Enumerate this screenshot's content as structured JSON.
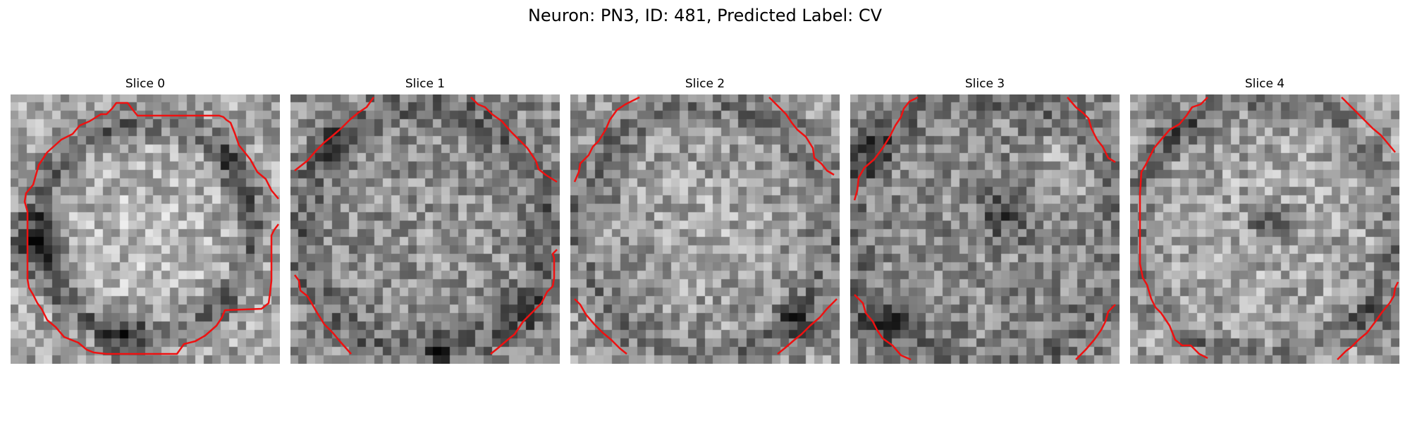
{
  "figure": {
    "title": "Neuron: PN3, ID: 481, Predicted Label: CV"
  },
  "colors": {
    "contour": "#ee1111",
    "colormap": "grayscale"
  },
  "slices": [
    {
      "title": "Slice 0"
    },
    {
      "title": "Slice 1"
    },
    {
      "title": "Slice 2"
    },
    {
      "title": "Slice 3"
    },
    {
      "title": "Slice 4"
    }
  ]
}
